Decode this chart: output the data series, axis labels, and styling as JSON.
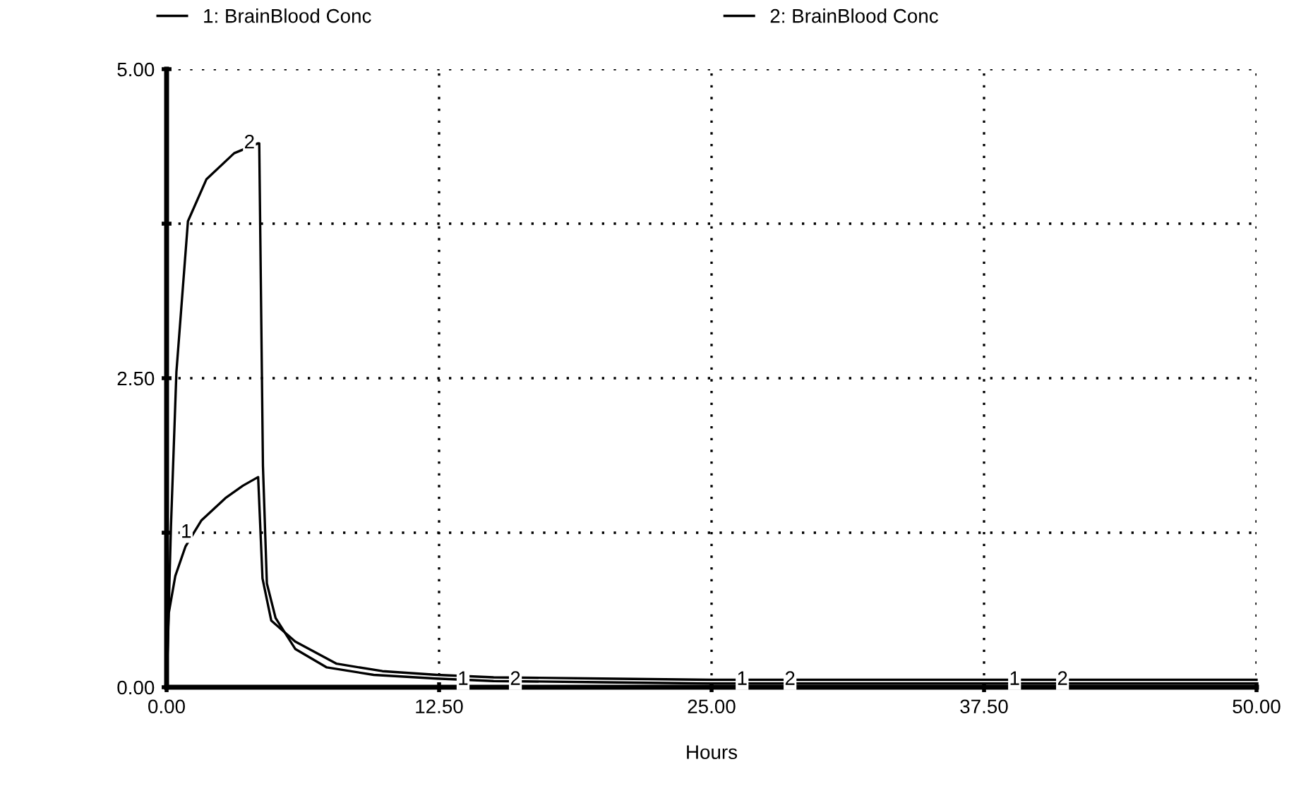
{
  "chart_data": {
    "type": "line",
    "xlabel": "Hours",
    "legend": "top",
    "grid": true,
    "xlim": [
      0,
      50
    ],
    "xticks": [
      {
        "value": 0,
        "label": "0.00"
      },
      {
        "value": 12.5,
        "label": "12.50"
      },
      {
        "value": 25,
        "label": "25.00"
      },
      {
        "value": 37.5,
        "label": "37.50"
      },
      {
        "value": 50,
        "label": "50.00"
      }
    ],
    "ylim": [
      0,
      5
    ],
    "yticks": [
      {
        "value": 0,
        "label": "0.00"
      },
      {
        "value": 1.25,
        "label": null
      },
      {
        "value": 2.5,
        "label": "2.50"
      },
      {
        "value": 3.75,
        "label": null
      },
      {
        "value": 5,
        "label": "5.00"
      }
    ],
    "series": [
      {
        "name": "1: BrainBlood Conc",
        "color": "#000000",
        "x": [
          0,
          0.1,
          0.4,
          0.87,
          1.6,
          2.7,
          3.5,
          4.2,
          4.4,
          4.8,
          5.9,
          7.8,
          9.9,
          12.4,
          15,
          20,
          25,
          30,
          40,
          50
        ],
        "values": [
          0,
          0.6,
          0.9,
          1.14,
          1.35,
          1.53,
          1.63,
          1.7,
          0.88,
          0.54,
          0.37,
          0.19,
          0.13,
          0.1,
          0.08,
          0.07,
          0.06,
          0.06,
          0.06,
          0.06
        ]
      },
      {
        "name": "2: BrainBlood Conc",
        "color": "#000000",
        "x": [
          0,
          0.2,
          0.45,
          0.98,
          1.83,
          3.1,
          4.2,
          4.25,
          4.42,
          4.6,
          5.0,
          5.9,
          7.35,
          9.5,
          12.4,
          15,
          20,
          25,
          30,
          40,
          50
        ],
        "values": [
          0,
          1.3,
          2.55,
          3.77,
          4.11,
          4.32,
          4.4,
          4.4,
          1.79,
          0.84,
          0.56,
          0.31,
          0.16,
          0.1,
          0.07,
          0.05,
          0.04,
          0.03,
          0.03,
          0.03,
          0.03
        ]
      }
    ],
    "annotations": [
      {
        "text": "1",
        "x": 0.9,
        "y": 1.25
      },
      {
        "text": "2",
        "x": 3.8,
        "y": 4.4
      },
      {
        "text": "1",
        "x": 13.6,
        "y": 0.06
      },
      {
        "text": "2",
        "x": 16,
        "y": 0.06
      },
      {
        "text": "1",
        "x": 26.4,
        "y": 0.06
      },
      {
        "text": "2",
        "x": 28.6,
        "y": 0.06
      },
      {
        "text": "1",
        "x": 38.9,
        "y": 0.06
      },
      {
        "text": "2",
        "x": 41.1,
        "y": 0.06
      }
    ]
  }
}
